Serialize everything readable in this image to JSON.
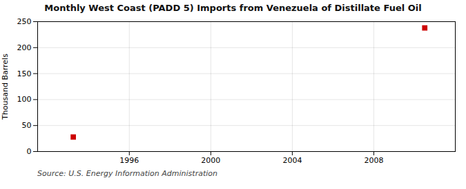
{
  "chart_data": {
    "type": "scatter",
    "title": "Monthly West Coast (PADD 5) Imports from Venezuela of Distillate Fuel Oil",
    "ylabel": "Thousand Barrels",
    "source": "Source: U.S. Energy Information Administration",
    "x": [
      1993.25,
      2010.5
    ],
    "values": [
      28,
      238
    ],
    "color": "#cc0000",
    "marker": "square",
    "xlim": [
      1991.5,
      2012.0
    ],
    "ylim": [
      0,
      250
    ],
    "xticks": [
      1996,
      2000,
      2004,
      2008
    ],
    "yticks": [
      0,
      50,
      100,
      150,
      200,
      250
    ],
    "grid": true
  }
}
